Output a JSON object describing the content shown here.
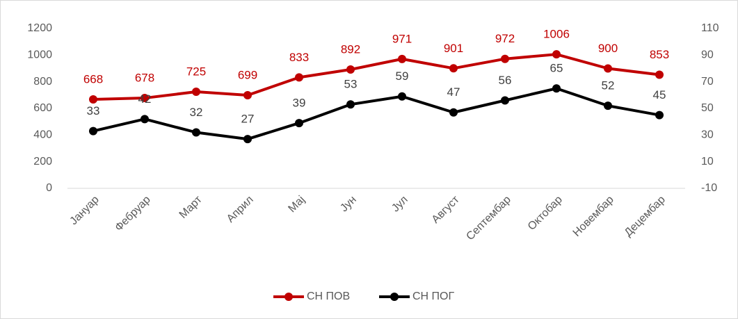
{
  "chart_data": {
    "type": "line",
    "categories": [
      "Јануар",
      "Фебруар",
      "Март",
      "Април",
      "Мај",
      "Јун",
      "Јул",
      "Август",
      "Септембар",
      "Октобар",
      "Новембар",
      "Децембар"
    ],
    "series": [
      {
        "name": "СН ПОВ",
        "color": "#c00000",
        "values": [
          668,
          678,
          725,
          699,
          833,
          892,
          971,
          901,
          972,
          1006,
          900,
          853
        ]
      },
      {
        "name": "СН ПОГ",
        "color": "#000000",
        "axis": "y2",
        "values": [
          33,
          42,
          32,
          27,
          39,
          53,
          59,
          47,
          56,
          65,
          52,
          45
        ]
      }
    ],
    "ylim": [
      0,
      1200
    ],
    "yticks": [
      0,
      200,
      400,
      600,
      800,
      1000,
      1200
    ],
    "y2lim": [
      -10,
      110
    ],
    "y2ticks": [
      -10,
      10,
      30,
      50,
      70,
      90,
      110
    ],
    "grid": false,
    "legend": "bottom"
  }
}
